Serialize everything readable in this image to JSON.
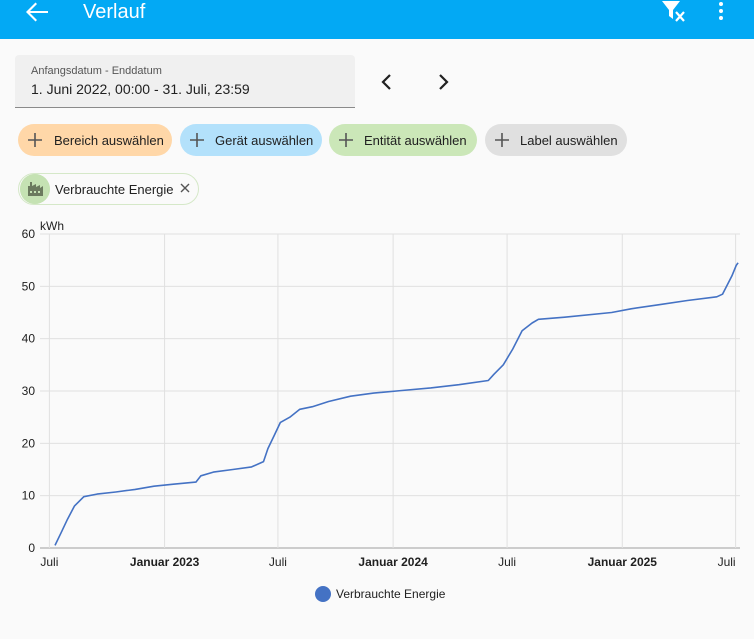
{
  "header": {
    "title": "Verlauf",
    "back_icon": "arrow-left-icon",
    "filter_icon": "filter-remove-icon",
    "more_icon": "dots-vertical-icon"
  },
  "date_range": {
    "label": "Anfangsdatum - Enddatum",
    "value": "1. Juni 2022, 00:00 - 31. Juli, 23:59"
  },
  "pickers": [
    {
      "label": "Bereich auswählen",
      "color": "#ffd7a8"
    },
    {
      "label": "Gerät auswählen",
      "color": "#b3e1fb"
    },
    {
      "label": "Entität auswählen",
      "color": "#cbe7b8"
    },
    {
      "label": "Label auswählen",
      "color": "#e0e0e0"
    }
  ],
  "selected_entity": {
    "label": "Verbrauchte Energie",
    "icon": "factory-icon"
  },
  "chart_data": {
    "type": "line",
    "ylabel": "kWh",
    "ylim": [
      0,
      60
    ],
    "yticks": [
      0,
      10,
      20,
      30,
      40,
      50,
      60
    ],
    "xticks": [
      {
        "label": "Juli",
        "date": "2022-07-01",
        "bold": false
      },
      {
        "label": "Januar 2023",
        "date": "2023-01-01",
        "bold": true
      },
      {
        "label": "Juli",
        "date": "2023-07-01",
        "bold": false
      },
      {
        "label": "Januar 2024",
        "date": "2024-01-01",
        "bold": true
      },
      {
        "label": "Juli",
        "date": "2024-07-01",
        "bold": false
      },
      {
        "label": "Januar 2025",
        "date": "2025-01-01",
        "bold": true
      },
      {
        "label": "Juli",
        "date": "2025-07-01",
        "bold": false
      }
    ],
    "legend_position": "bottom",
    "series": [
      {
        "name": "Verbrauchte Energie",
        "color": "#4472c4",
        "points": [
          [
            "2022-07-10",
            0.5
          ],
          [
            "2022-07-20",
            3
          ],
          [
            "2022-07-30",
            5.5
          ],
          [
            "2022-08-10",
            8
          ],
          [
            "2022-08-25",
            9.8
          ],
          [
            "2022-09-15",
            10.3
          ],
          [
            "2022-10-15",
            10.7
          ],
          [
            "2022-11-15",
            11.2
          ],
          [
            "2022-12-15",
            11.8
          ],
          [
            "2023-01-15",
            12.2
          ],
          [
            "2023-02-20",
            12.6
          ],
          [
            "2023-02-28",
            13.8
          ],
          [
            "2023-03-20",
            14.5
          ],
          [
            "2023-04-20",
            15
          ],
          [
            "2023-05-20",
            15.5
          ],
          [
            "2023-06-08",
            16.5
          ],
          [
            "2023-06-15",
            19
          ],
          [
            "2023-06-25",
            21.5
          ],
          [
            "2023-07-05",
            24
          ],
          [
            "2023-07-20",
            25
          ],
          [
            "2023-08-05",
            26.5
          ],
          [
            "2023-08-25",
            27
          ],
          [
            "2023-09-20",
            28
          ],
          [
            "2023-10-25",
            29
          ],
          [
            "2023-12-01",
            29.6
          ],
          [
            "2024-01-15",
            30.1
          ],
          [
            "2024-03-01",
            30.6
          ],
          [
            "2024-04-15",
            31.2
          ],
          [
            "2024-06-01",
            32
          ],
          [
            "2024-06-10",
            33.2
          ],
          [
            "2024-06-25",
            35
          ],
          [
            "2024-07-10",
            38
          ],
          [
            "2024-07-25",
            41.5
          ],
          [
            "2024-08-10",
            43
          ],
          [
            "2024-08-20",
            43.7
          ],
          [
            "2024-10-01",
            44.1
          ],
          [
            "2024-12-15",
            45
          ],
          [
            "2025-01-15",
            45.7
          ],
          [
            "2025-03-01",
            46.5
          ],
          [
            "2025-04-15",
            47.3
          ],
          [
            "2025-06-01",
            48
          ],
          [
            "2025-06-10",
            48.5
          ],
          [
            "2025-06-25",
            52
          ],
          [
            "2025-07-02",
            54
          ],
          [
            "2025-07-05",
            54.5
          ]
        ]
      }
    ]
  }
}
